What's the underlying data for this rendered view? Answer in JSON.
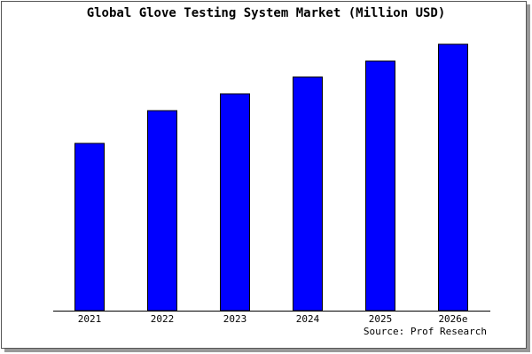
{
  "chart_data": {
    "type": "bar",
    "title": "Global Glove Testing System Market (Million USD)",
    "categories": [
      "2021",
      "2022",
      "2023",
      "2024",
      "2025",
      "2026e"
    ],
    "values": [
      189,
      226,
      245,
      264,
      282,
      301
    ],
    "color": "#0000ff",
    "ylim": [
      0,
      303
    ],
    "source": "Source: Prof Research"
  }
}
